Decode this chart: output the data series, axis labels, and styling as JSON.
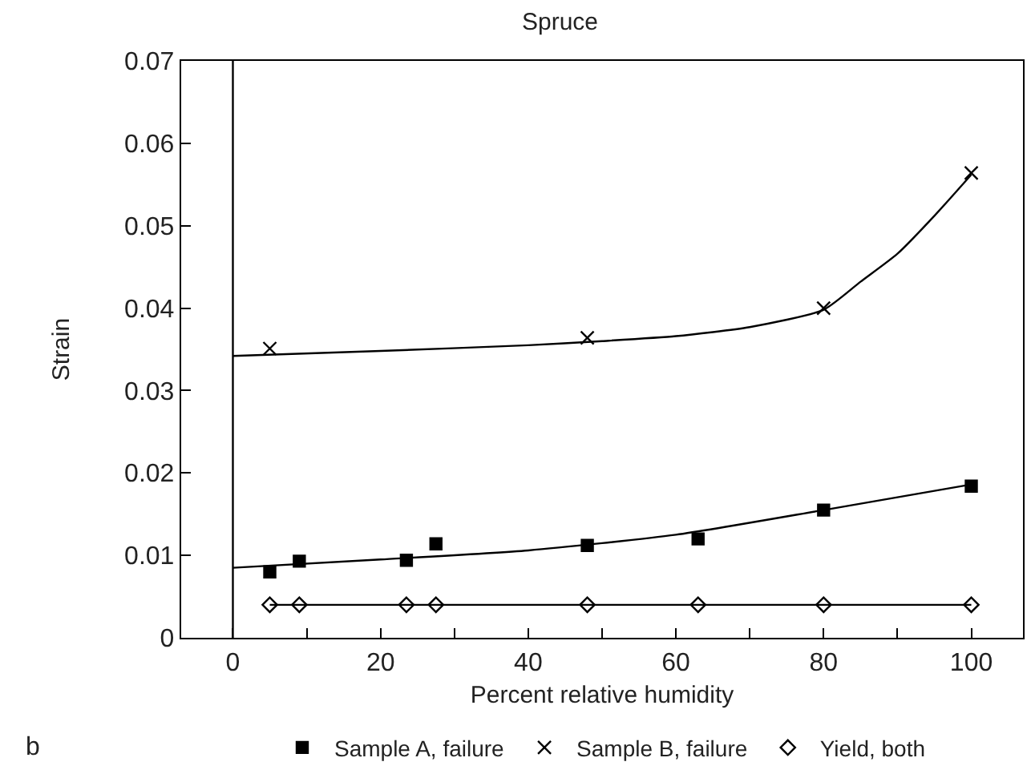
{
  "chart_data": {
    "type": "scatter",
    "title": "Spruce",
    "xlabel": "Percent relative humidity",
    "ylabel": "Strain",
    "x": [
      5,
      9,
      23.5,
      27.5,
      48,
      63,
      80,
      100
    ],
    "series": [
      {
        "name": "Sample A, failure",
        "color": "#000000",
        "marker": "square",
        "values": [
          0.008,
          0.0093,
          0.0094,
          0.0114,
          0.0112,
          0.012,
          0.0155,
          0.0184
        ]
      },
      {
        "name": "Sample B, failure",
        "color": "#000000",
        "marker": "cross",
        "x": [
          5,
          48,
          80,
          100
        ],
        "values": [
          0.0351,
          0.0364,
          0.04,
          0.0564
        ]
      },
      {
        "name": "Yield, both",
        "color": "#000000",
        "marker": "diamond",
        "values": [
          0.004,
          0.004,
          0.004,
          0.004,
          0.004,
          0.004,
          0.004,
          0.004
        ]
      },
      {
        "type": "line",
        "color": "#000000",
        "marker": "none",
        "x": [
          0,
          20,
          40,
          60,
          80,
          100
        ],
        "values": [
          0.0085,
          0.0095,
          0.0106,
          0.0125,
          0.0155,
          0.0186
        ]
      },
      {
        "type": "line",
        "color": "#000000",
        "marker": "none",
        "x": [
          0,
          20,
          40,
          50,
          60,
          70,
          80,
          85,
          90,
          95,
          100
        ],
        "values": [
          0.0342,
          0.0348,
          0.0355,
          0.036,
          0.0366,
          0.0377,
          0.0398,
          0.0432,
          0.0466,
          0.0512,
          0.0562
        ]
      },
      {
        "type": "line",
        "color": "#000000",
        "marker": "none",
        "x": [
          5,
          100
        ],
        "values": [
          0.004,
          0.004
        ]
      }
    ],
    "xlim": [
      -7,
      107
    ],
    "xticks": [
      0,
      {
        "value": 10,
        "label": null
      },
      20,
      {
        "value": 30,
        "label": null
      },
      40,
      {
        "value": 50,
        "label": null
      },
      60,
      {
        "value": 70,
        "label": null
      },
      80,
      {
        "value": 90,
        "label": null
      },
      100
    ],
    "ylim": [
      0,
      0.07
    ],
    "yticks": [
      0,
      0.01,
      0.02,
      0.03,
      0.04,
      0.05,
      0.06,
      0.07
    ],
    "ref_lines": [
      {
        "axis": "x",
        "value": 0,
        "color": "#000000"
      }
    ],
    "annotations": [
      "b"
    ],
    "legend": "bottom",
    "grid": false
  }
}
